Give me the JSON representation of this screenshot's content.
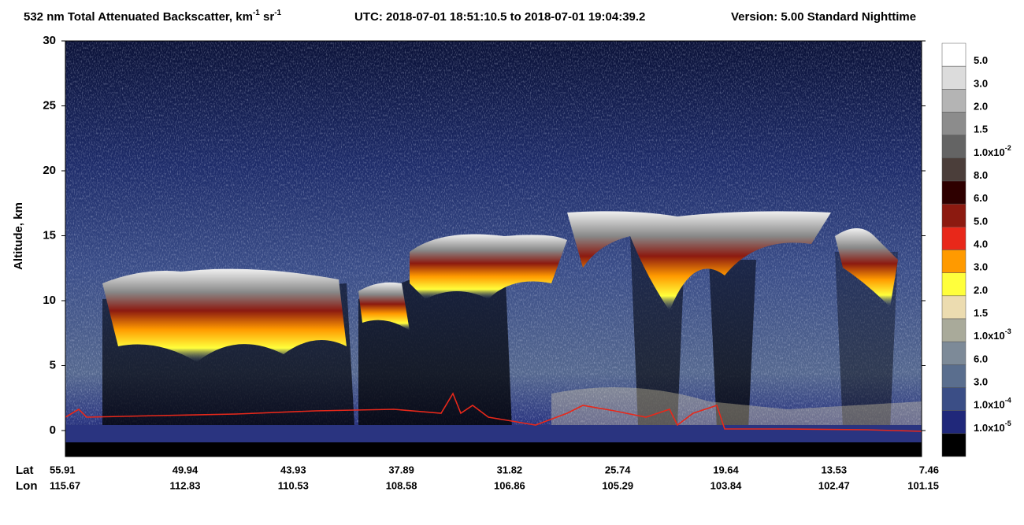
{
  "chart_data": {
    "type": "heatmap",
    "title": [
      "532 nm Total Attenuated Backscatter, km",
      "-1",
      " sr",
      "-1"
    ],
    "subtitle": "UTC:  2018-07-01 18:51:10.5  to  2018-07-01 19:04:39.2",
    "version": "Version: 5.00  Standard  Nighttime",
    "ylabel": "Altitude, km",
    "ylim": [
      -2,
      30
    ],
    "yticks": [
      0,
      5,
      10,
      15,
      20,
      25,
      30
    ],
    "lat_label": "Lat",
    "lon_label": "Lon",
    "lat": [
      "55.91",
      "49.94",
      "43.93",
      "37.89",
      "31.82",
      "25.74",
      "19.64",
      "13.53",
      "7.46"
    ],
    "lon": [
      "115.67",
      "112.83",
      "110.53",
      "108.58",
      "106.86",
      "105.29",
      "103.84",
      "102.47",
      "101.15"
    ],
    "colorbar": {
      "colors": [
        "#ffffff",
        "#dcdcdc",
        "#b4b4b4",
        "#8c8c8c",
        "#646464",
        "#4b3e3a",
        "#2e0000",
        "#8c1a10",
        "#e8281a",
        "#ff9a00",
        "#ffff3c",
        "#ecdcb0",
        "#a9aa9a",
        "#7d8a98",
        "#5a6e8e",
        "#3b4e86",
        "#20287a",
        "#000000"
      ],
      "labels": [
        {
          "text": "5.0"
        },
        {
          "text": "3.0"
        },
        {
          "text": "2.0"
        },
        {
          "text": "1.5"
        },
        {
          "text": "1.0x10",
          "exp": "-2"
        },
        {
          "text": "8.0"
        },
        {
          "text": "6.0"
        },
        {
          "text": "5.0"
        },
        {
          "text": "4.0"
        },
        {
          "text": "3.0"
        },
        {
          "text": "2.0"
        },
        {
          "text": "1.5"
        },
        {
          "text": "1.0x10",
          "exp": "-3"
        },
        {
          "text": "6.0"
        },
        {
          "text": "3.0"
        },
        {
          "text": "1.0x10",
          "exp": "-4"
        },
        {
          "text": "1.0x10",
          "exp": "-5"
        }
      ]
    }
  }
}
